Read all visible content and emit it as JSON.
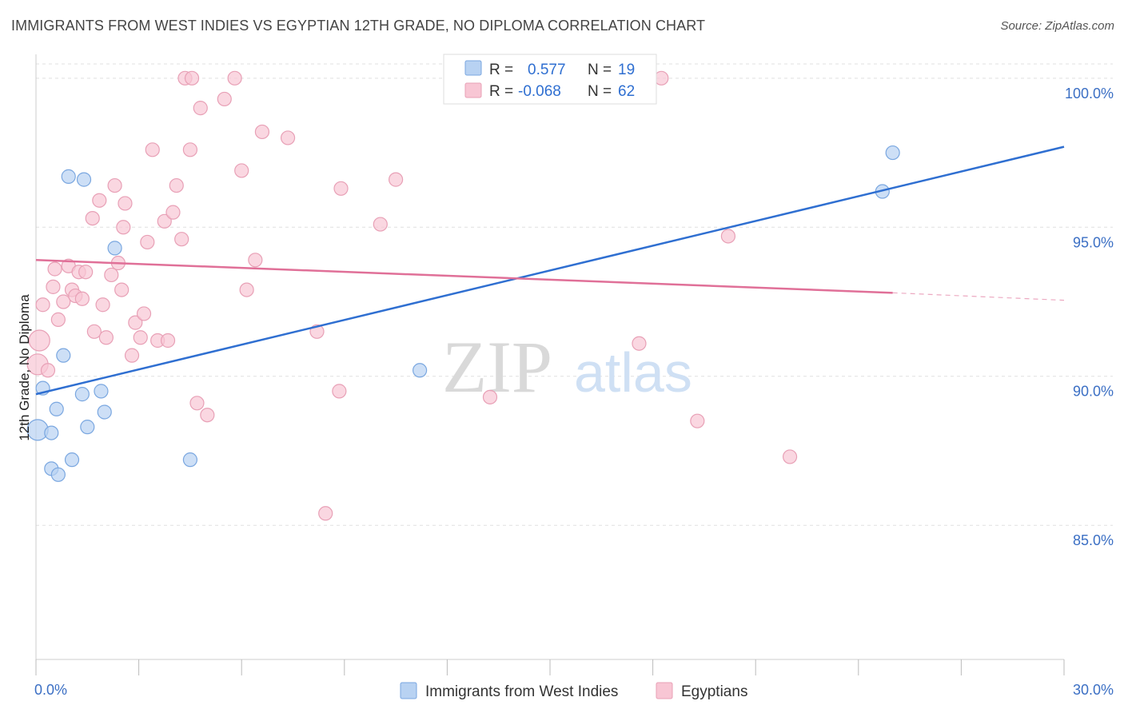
{
  "title": "IMMIGRANTS FROM WEST INDIES VS EGYPTIAN 12TH GRADE, NO DIPLOMA CORRELATION CHART",
  "source": "Source: ZipAtlas.com",
  "watermark": {
    "zip": "ZIP",
    "atlas": "atlas"
  },
  "colors": {
    "blue_fill": "#b8d2f2",
    "blue_stroke": "#7aa7e0",
    "blue_line": "#2f6fd1",
    "pink_fill": "#f8c6d4",
    "pink_stroke": "#e8a0b6",
    "pink_line": "#e07098",
    "accent_text": "#3b6fc4",
    "grid": "#e0e0e0"
  },
  "legend": {
    "rows": [
      {
        "r_label": "R =",
        "r_value": "0.577",
        "n_label": "N =",
        "n_value": "19",
        "color": "blue"
      },
      {
        "r_label": "R =",
        "r_value": "-0.068",
        "n_label": "N =",
        "n_value": "62",
        "color": "pink"
      }
    ]
  },
  "chart_data": {
    "type": "scatter",
    "title": "IMMIGRANTS FROM WEST INDIES VS EGYPTIAN 12TH GRADE, NO DIPLOMA CORRELATION CHART",
    "xlabel": "",
    "ylabel": "12th Grade, No Diploma",
    "xlim": [
      0,
      30
    ],
    "ylim": [
      80.5,
      100.8
    ],
    "x_tick_labels": [
      "0.0%",
      "30.0%"
    ],
    "y_ticks": [
      85,
      90,
      95,
      100
    ],
    "y_tick_labels": [
      "85.0%",
      "90.0%",
      "95.0%",
      "100.0%"
    ],
    "grid": true,
    "legend_placement": "bottom-center",
    "series": [
      {
        "name": "Immigrants from West Indies",
        "color": "blue",
        "points": [
          [
            0.05,
            88.2
          ],
          [
            0.2,
            89.6
          ],
          [
            0.45,
            86.9
          ],
          [
            0.45,
            88.1
          ],
          [
            0.6,
            88.9
          ],
          [
            0.65,
            86.7
          ],
          [
            0.8,
            90.7
          ],
          [
            0.95,
            96.7
          ],
          [
            1.05,
            87.2
          ],
          [
            1.35,
            89.4
          ],
          [
            1.4,
            96.6
          ],
          [
            1.5,
            88.3
          ],
          [
            1.9,
            89.5
          ],
          [
            2.0,
            88.8
          ],
          [
            2.3,
            94.3
          ],
          [
            4.5,
            87.2
          ],
          [
            11.2,
            90.2
          ],
          [
            24.7,
            96.2
          ],
          [
            25.0,
            97.5
          ]
        ],
        "trend": {
          "x": [
            0,
            30
          ],
          "y": [
            89.4,
            97.7
          ]
        }
      },
      {
        "name": "Egyptians",
        "color": "pink",
        "points": [
          [
            0.05,
            90.4
          ],
          [
            0.1,
            91.2
          ],
          [
            0.2,
            92.4
          ],
          [
            0.35,
            90.2
          ],
          [
            0.5,
            93.0
          ],
          [
            0.55,
            93.6
          ],
          [
            0.65,
            91.9
          ],
          [
            0.8,
            92.5
          ],
          [
            0.95,
            93.7
          ],
          [
            1.05,
            92.9
          ],
          [
            1.15,
            92.7
          ],
          [
            1.25,
            93.5
          ],
          [
            1.35,
            92.6
          ],
          [
            1.45,
            93.5
          ],
          [
            1.65,
            95.3
          ],
          [
            1.7,
            91.5
          ],
          [
            1.85,
            95.9
          ],
          [
            1.95,
            92.4
          ],
          [
            2.05,
            91.3
          ],
          [
            2.2,
            93.4
          ],
          [
            2.3,
            96.4
          ],
          [
            2.4,
            93.8
          ],
          [
            2.5,
            92.9
          ],
          [
            2.55,
            95.0
          ],
          [
            2.6,
            95.8
          ],
          [
            2.8,
            90.7
          ],
          [
            2.9,
            91.8
          ],
          [
            3.05,
            91.3
          ],
          [
            3.15,
            92.1
          ],
          [
            3.25,
            94.5
          ],
          [
            3.4,
            97.6
          ],
          [
            3.55,
            91.2
          ],
          [
            3.75,
            95.2
          ],
          [
            3.85,
            91.2
          ],
          [
            4.0,
            95.5
          ],
          [
            4.1,
            96.4
          ],
          [
            4.25,
            94.6
          ],
          [
            4.35,
            100.0
          ],
          [
            4.5,
            97.6
          ],
          [
            4.55,
            100.0
          ],
          [
            4.7,
            89.1
          ],
          [
            4.8,
            99.0
          ],
          [
            5.0,
            88.7
          ],
          [
            5.5,
            99.3
          ],
          [
            5.8,
            100.0
          ],
          [
            6.0,
            96.9
          ],
          [
            6.15,
            92.9
          ],
          [
            6.4,
            93.9
          ],
          [
            6.6,
            98.2
          ],
          [
            7.35,
            98.0
          ],
          [
            8.2,
            91.5
          ],
          [
            8.45,
            85.4
          ],
          [
            8.85,
            89.5
          ],
          [
            8.9,
            96.3
          ],
          [
            10.05,
            95.1
          ],
          [
            10.5,
            96.6
          ],
          [
            13.25,
            89.3
          ],
          [
            17.6,
            91.1
          ],
          [
            18.25,
            100.0
          ],
          [
            19.3,
            88.5
          ],
          [
            20.2,
            94.7
          ],
          [
            22.0,
            87.3
          ]
        ],
        "trend": {
          "x": [
            0,
            25.0
          ],
          "y": [
            93.9,
            92.8
          ]
        },
        "trend_dashed": {
          "x": [
            25.0,
            30
          ],
          "y": [
            92.8,
            92.55
          ]
        }
      }
    ]
  }
}
